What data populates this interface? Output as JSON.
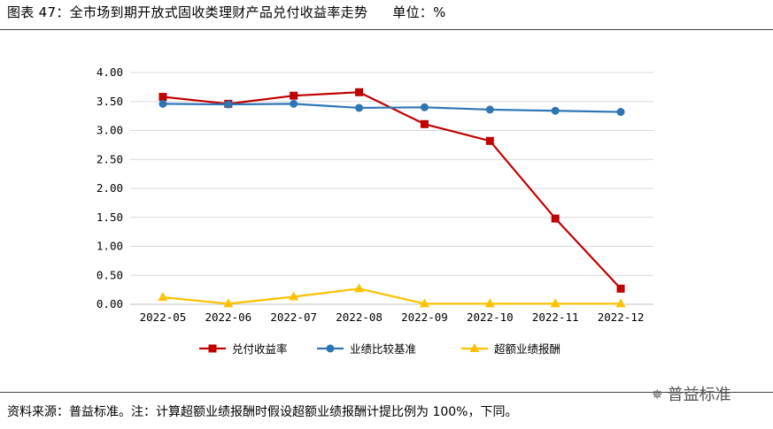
{
  "figure": {
    "title": "图表 47：全市场到期开放式固收类理财产品兑付收益率走势",
    "unit": "单位：%"
  },
  "footer": {
    "source": "资料来源：普益标准。注：计算超额业绩报酬时假设超额业绩报酬计提比例为 100%，下同。"
  },
  "watermark": {
    "icon": "wechat-icon",
    "text": "普益标准"
  },
  "chart_data": {
    "type": "line",
    "title": "全市场到期开放式固收类理财产品兑付收益率走势",
    "xlabel": "",
    "ylabel": "",
    "categories": [
      "2022-05",
      "2022-06",
      "2022-07",
      "2022-08",
      "2022-09",
      "2022-10",
      "2022-11",
      "2022-12"
    ],
    "ylim": [
      0,
      4
    ],
    "yticks": [
      "0.00",
      "0.50",
      "1.00",
      "1.50",
      "2.00",
      "2.50",
      "3.00",
      "3.50",
      "4.00"
    ],
    "grid": true,
    "legend_position": "bottom",
    "series": [
      {
        "name": "兑付收益率",
        "color": "#c00000",
        "marker": "square",
        "values": [
          3.58,
          3.46,
          3.6,
          3.66,
          3.11,
          2.82,
          1.48,
          0.27
        ]
      },
      {
        "name": "业绩比较基准",
        "color": "#2e75b6",
        "marker": "circle",
        "values": [
          3.46,
          3.45,
          3.46,
          3.39,
          3.4,
          3.36,
          3.34,
          3.32
        ]
      },
      {
        "name": "超额业绩报酬",
        "color": "#ffc000",
        "marker": "triangle",
        "values": [
          0.12,
          0.01,
          0.13,
          0.27,
          0.01,
          0.01,
          0.01,
          0.01
        ]
      }
    ]
  }
}
